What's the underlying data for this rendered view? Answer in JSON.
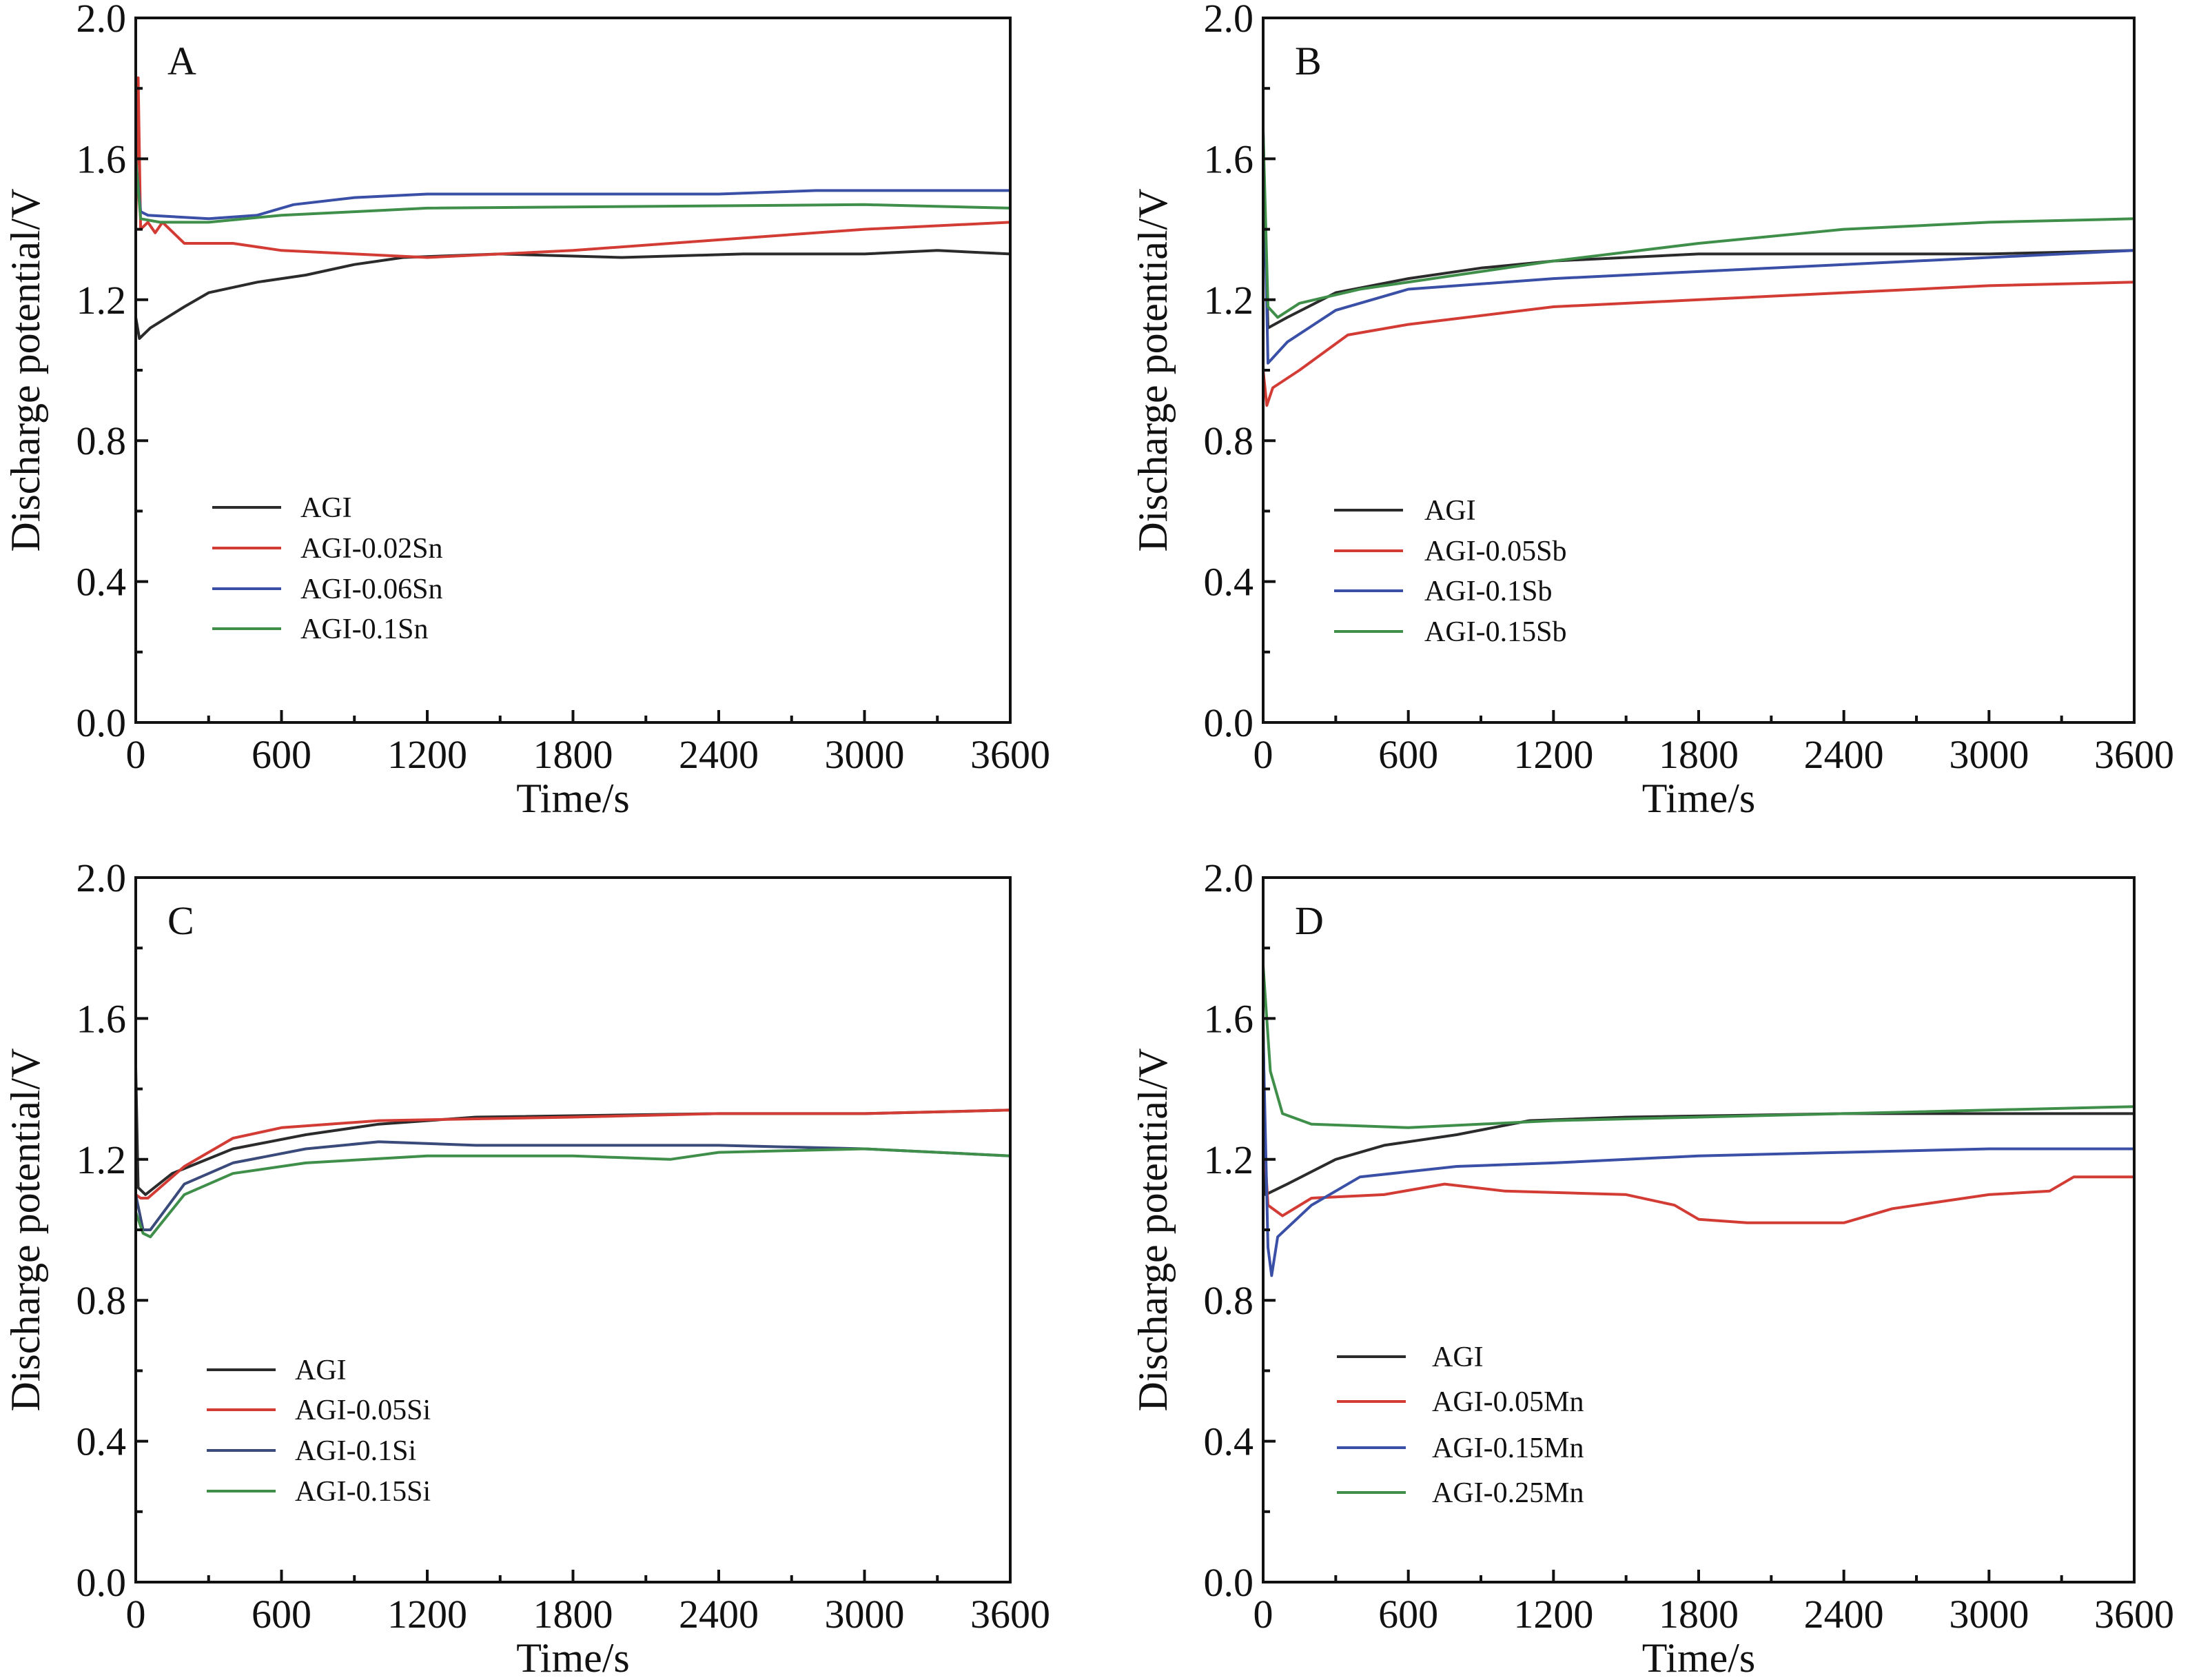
{
  "chart_data": [
    {
      "type": "line",
      "panel_label": "A",
      "xlabel": "Time/s",
      "ylabel": "Discharge potential/V",
      "xlim": [
        0,
        3600
      ],
      "ylim": [
        0.0,
        2.0
      ],
      "xticks": [
        "0",
        "600",
        "1200",
        "1800",
        "2400",
        "3000",
        "3600"
      ],
      "yticks": [
        "0.0",
        "0.4",
        "0.8",
        "1.2",
        "1.6",
        "2.0"
      ],
      "grid": false,
      "legend_position": "lower-left",
      "series": [
        {
          "name": "AGI",
          "color": "#2b2b2b",
          "points": [
            [
              0,
              1.15
            ],
            [
              15,
              1.09
            ],
            [
              60,
              1.12
            ],
            [
              200,
              1.18
            ],
            [
              300,
              1.22
            ],
            [
              500,
              1.25
            ],
            [
              700,
              1.27
            ],
            [
              900,
              1.3
            ],
            [
              1100,
              1.32
            ],
            [
              1500,
              1.33
            ],
            [
              2000,
              1.32
            ],
            [
              2500,
              1.33
            ],
            [
              3000,
              1.33
            ],
            [
              3300,
              1.34
            ],
            [
              3600,
              1.33
            ]
          ]
        },
        {
          "name": "AGI-0.02Sn",
          "color": "#d23c35",
          "points": [
            [
              0,
              1.4
            ],
            [
              10,
              1.83
            ],
            [
              20,
              1.4
            ],
            [
              50,
              1.42
            ],
            [
              80,
              1.39
            ],
            [
              110,
              1.42
            ],
            [
              200,
              1.36
            ],
            [
              400,
              1.36
            ],
            [
              600,
              1.34
            ],
            [
              900,
              1.33
            ],
            [
              1200,
              1.32
            ],
            [
              1800,
              1.34
            ],
            [
              2400,
              1.37
            ],
            [
              3000,
              1.4
            ],
            [
              3600,
              1.42
            ]
          ]
        },
        {
          "name": "AGI-0.06Sn",
          "color": "#3a4fa6",
          "points": [
            [
              0,
              1.6
            ],
            [
              20,
              1.45
            ],
            [
              50,
              1.44
            ],
            [
              300,
              1.43
            ],
            [
              500,
              1.44
            ],
            [
              650,
              1.47
            ],
            [
              900,
              1.49
            ],
            [
              1200,
              1.5
            ],
            [
              2400,
              1.5
            ],
            [
              2800,
              1.51
            ],
            [
              3600,
              1.51
            ]
          ]
        },
        {
          "name": "AGI-0.1Sn",
          "color": "#3f8f4a",
          "points": [
            [
              0,
              1.6
            ],
            [
              20,
              1.43
            ],
            [
              100,
              1.42
            ],
            [
              300,
              1.42
            ],
            [
              600,
              1.44
            ],
            [
              900,
              1.45
            ],
            [
              1200,
              1.46
            ],
            [
              3000,
              1.47
            ],
            [
              3600,
              1.46
            ]
          ]
        }
      ]
    },
    {
      "type": "line",
      "panel_label": "B",
      "xlabel": "Time/s",
      "ylabel": "Discharge potential/V",
      "xlim": [
        0,
        3600
      ],
      "ylim": [
        0.0,
        2.0
      ],
      "xticks": [
        "0",
        "600",
        "1200",
        "1800",
        "2400",
        "3000",
        "3600"
      ],
      "yticks": [
        "0.0",
        "0.4",
        "0.8",
        "1.2",
        "1.6",
        "2.0"
      ],
      "grid": false,
      "legend_position": "lower-left",
      "series": [
        {
          "name": "AGI",
          "color": "#2b2b2b",
          "points": [
            [
              0,
              1.6
            ],
            [
              20,
              1.12
            ],
            [
              100,
              1.15
            ],
            [
              300,
              1.22
            ],
            [
              600,
              1.26
            ],
            [
              900,
              1.29
            ],
            [
              1200,
              1.31
            ],
            [
              1800,
              1.33
            ],
            [
              2400,
              1.33
            ],
            [
              3000,
              1.33
            ],
            [
              3600,
              1.34
            ]
          ]
        },
        {
          "name": "AGI-0.05Sb",
          "color": "#d23c35",
          "points": [
            [
              0,
              1.0
            ],
            [
              15,
              0.9
            ],
            [
              40,
              0.95
            ],
            [
              150,
              1.0
            ],
            [
              350,
              1.1
            ],
            [
              600,
              1.13
            ],
            [
              1200,
              1.18
            ],
            [
              1800,
              1.2
            ],
            [
              2400,
              1.22
            ],
            [
              3000,
              1.24
            ],
            [
              3600,
              1.25
            ]
          ]
        },
        {
          "name": "AGI-0.1Sb",
          "color": "#3a4fa6",
          "points": [
            [
              0,
              1.68
            ],
            [
              20,
              1.02
            ],
            [
              100,
              1.08
            ],
            [
              300,
              1.17
            ],
            [
              600,
              1.23
            ],
            [
              1200,
              1.26
            ],
            [
              1800,
              1.28
            ],
            [
              2400,
              1.3
            ],
            [
              3000,
              1.32
            ],
            [
              3600,
              1.34
            ]
          ]
        },
        {
          "name": "AGI-0.15Sb",
          "color": "#3f8f4a",
          "points": [
            [
              0,
              1.68
            ],
            [
              20,
              1.18
            ],
            [
              60,
              1.15
            ],
            [
              150,
              1.19
            ],
            [
              400,
              1.23
            ],
            [
              700,
              1.26
            ],
            [
              1200,
              1.31
            ],
            [
              1800,
              1.36
            ],
            [
              2400,
              1.4
            ],
            [
              3000,
              1.42
            ],
            [
              3600,
              1.43
            ]
          ]
        }
      ]
    },
    {
      "type": "line",
      "panel_label": "C",
      "xlabel": "Time/s",
      "ylabel": "Discharge potential/V",
      "xlim": [
        0,
        3600
      ],
      "ylim": [
        0.0,
        2.0
      ],
      "xticks": [
        "0",
        "600",
        "1200",
        "1800",
        "2400",
        "3000",
        "3600"
      ],
      "yticks": [
        "0.0",
        "0.4",
        "0.8",
        "1.2",
        "1.6",
        "2.0"
      ],
      "grid": false,
      "legend_position": "lower-left",
      "series": [
        {
          "name": "AGI",
          "color": "#2b2b2b",
          "points": [
            [
              0,
              1.46
            ],
            [
              10,
              1.12
            ],
            [
              40,
              1.1
            ],
            [
              150,
              1.16
            ],
            [
              400,
              1.23
            ],
            [
              700,
              1.27
            ],
            [
              1000,
              1.3
            ],
            [
              1400,
              1.32
            ],
            [
              2400,
              1.33
            ],
            [
              3000,
              1.33
            ],
            [
              3600,
              1.34
            ]
          ]
        },
        {
          "name": "AGI-0.05Si",
          "color": "#d23c35",
          "points": [
            [
              0,
              1.1
            ],
            [
              20,
              1.09
            ],
            [
              50,
              1.09
            ],
            [
              200,
              1.18
            ],
            [
              400,
              1.26
            ],
            [
              600,
              1.29
            ],
            [
              1000,
              1.31
            ],
            [
              1800,
              1.32
            ],
            [
              2400,
              1.33
            ],
            [
              3000,
              1.33
            ],
            [
              3600,
              1.34
            ]
          ]
        },
        {
          "name": "AGI-0.1Si",
          "color": "#3a4a7a",
          "points": [
            [
              0,
              1.1
            ],
            [
              30,
              1.0
            ],
            [
              60,
              1.0
            ],
            [
              200,
              1.13
            ],
            [
              400,
              1.19
            ],
            [
              700,
              1.23
            ],
            [
              1000,
              1.25
            ],
            [
              1400,
              1.24
            ],
            [
              2400,
              1.24
            ],
            [
              3000,
              1.23
            ],
            [
              3600,
              1.21
            ]
          ]
        },
        {
          "name": "AGI-0.15Si",
          "color": "#3f8f4a",
          "points": [
            [
              0,
              1.05
            ],
            [
              30,
              0.99
            ],
            [
              60,
              0.98
            ],
            [
              200,
              1.1
            ],
            [
              400,
              1.16
            ],
            [
              700,
              1.19
            ],
            [
              1200,
              1.21
            ],
            [
              1800,
              1.21
            ],
            [
              2200,
              1.2
            ],
            [
              2400,
              1.22
            ],
            [
              3000,
              1.23
            ],
            [
              3600,
              1.21
            ]
          ]
        }
      ]
    },
    {
      "type": "line",
      "panel_label": "D",
      "xlabel": "Time/s",
      "ylabel": "Discharge potential/V",
      "xlim": [
        0,
        3600
      ],
      "ylim": [
        0.0,
        2.0
      ],
      "xticks": [
        "0",
        "600",
        "1200",
        "1800",
        "2400",
        "3000",
        "3600"
      ],
      "yticks": [
        "0.0",
        "0.4",
        "0.8",
        "1.2",
        "1.6",
        "2.0"
      ],
      "grid": false,
      "legend_position": "lower-left",
      "series": [
        {
          "name": "AGI",
          "color": "#2b2b2b",
          "points": [
            [
              0,
              1.6
            ],
            [
              10,
              1.1
            ],
            [
              100,
              1.13
            ],
            [
              300,
              1.2
            ],
            [
              500,
              1.24
            ],
            [
              800,
              1.27
            ],
            [
              1100,
              1.31
            ],
            [
              1500,
              1.32
            ],
            [
              2400,
              1.33
            ],
            [
              3600,
              1.33
            ]
          ]
        },
        {
          "name": "AGI-0.05Mn",
          "color": "#d23c35",
          "points": [
            [
              0,
              1.3
            ],
            [
              20,
              1.07
            ],
            [
              80,
              1.04
            ],
            [
              200,
              1.09
            ],
            [
              500,
              1.1
            ],
            [
              750,
              1.13
            ],
            [
              1000,
              1.11
            ],
            [
              1500,
              1.1
            ],
            [
              1700,
              1.07
            ],
            [
              1800,
              1.03
            ],
            [
              2000,
              1.02
            ],
            [
              2400,
              1.02
            ],
            [
              2600,
              1.06
            ],
            [
              2800,
              1.08
            ],
            [
              3000,
              1.1
            ],
            [
              3250,
              1.11
            ],
            [
              3350,
              1.15
            ],
            [
              3600,
              1.15
            ]
          ]
        },
        {
          "name": "AGI-0.15Mn",
          "color": "#3a4fa6",
          "points": [
            [
              0,
              1.55
            ],
            [
              20,
              0.95
            ],
            [
              35,
              0.87
            ],
            [
              60,
              0.98
            ],
            [
              200,
              1.07
            ],
            [
              400,
              1.15
            ],
            [
              800,
              1.18
            ],
            [
              1200,
              1.19
            ],
            [
              1800,
              1.21
            ],
            [
              2400,
              1.22
            ],
            [
              3000,
              1.23
            ],
            [
              3600,
              1.23
            ]
          ]
        },
        {
          "name": "AGI-0.25Mn",
          "color": "#3f8f4a",
          "points": [
            [
              0,
              1.75
            ],
            [
              30,
              1.45
            ],
            [
              80,
              1.33
            ],
            [
              200,
              1.3
            ],
            [
              600,
              1.29
            ],
            [
              1200,
              1.31
            ],
            [
              1800,
              1.32
            ],
            [
              2400,
              1.33
            ],
            [
              3600,
              1.35
            ]
          ]
        }
      ]
    }
  ]
}
